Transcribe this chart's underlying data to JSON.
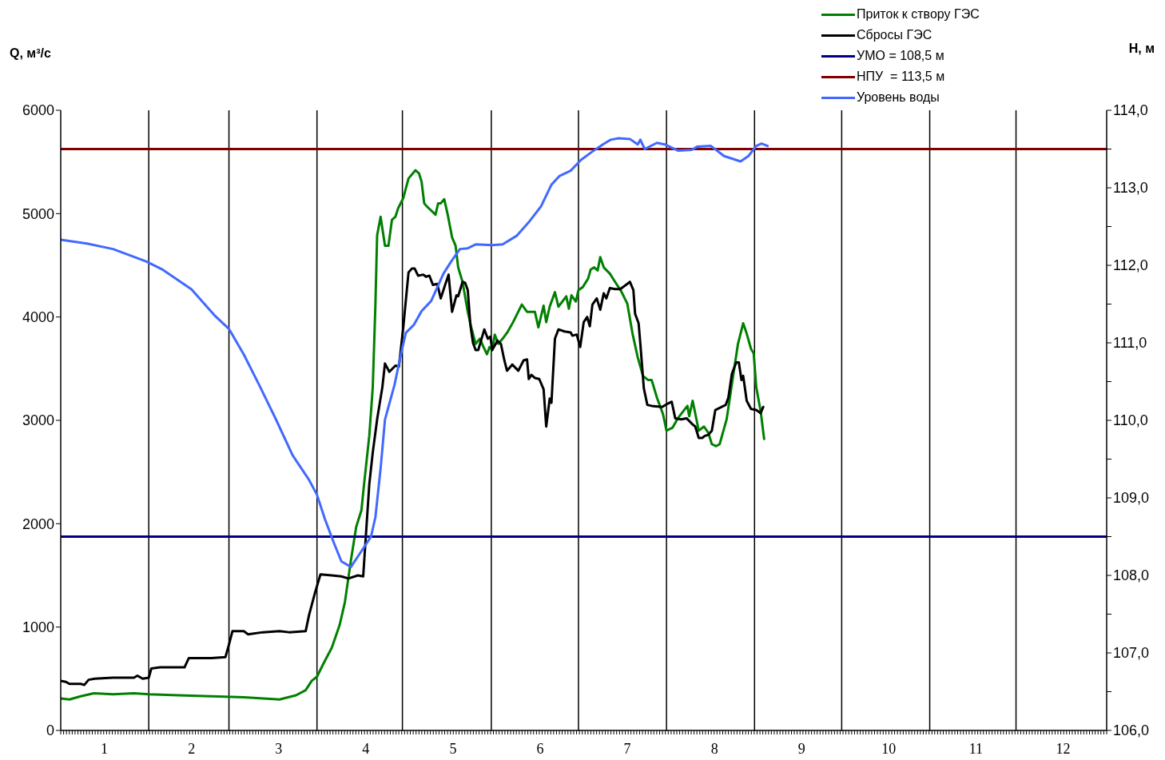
{
  "chart_data": {
    "type": "line",
    "ylabel": "Q, м³/с",
    "y2label": "H, м",
    "legend": "top right",
    "marker": "none",
    "line_style": "solid",
    "xlim": [
      0.5,
      12.5
    ],
    "xticks": [
      1,
      2,
      3,
      4,
      5,
      6,
      7,
      8,
      9,
      10,
      11,
      12,
      {
        "value": 0.5,
        "label": null
      },
      {
        "value": 0.533,
        "label": null
      },
      {
        "value": 0.566,
        "label": null
      },
      {
        "value": 0.599,
        "label": null
      },
      {
        "value": 0.632,
        "label": null
      },
      {
        "value": 0.664,
        "label": null
      },
      {
        "value": 0.697,
        "label": null
      },
      {
        "value": 0.73,
        "label": null
      },
      {
        "value": 0.763,
        "label": null
      },
      {
        "value": 0.796,
        "label": null
      },
      {
        "value": 0.829,
        "label": null
      },
      {
        "value": 0.862,
        "label": null
      },
      {
        "value": 0.895,
        "label": null
      },
      {
        "value": 0.927,
        "label": null
      },
      {
        "value": 0.96,
        "label": null
      },
      {
        "value": 0.993,
        "label": null
      },
      {
        "value": 1.026,
        "label": null
      },
      {
        "value": 1.059,
        "label": null
      },
      {
        "value": 1.092,
        "label": null
      },
      {
        "value": 1.125,
        "label": null
      },
      {
        "value": 1.158,
        "label": null
      },
      {
        "value": 1.19,
        "label": null
      },
      {
        "value": 1.223,
        "label": null
      },
      {
        "value": 1.256,
        "label": null
      },
      {
        "value": 1.289,
        "label": null
      },
      {
        "value": 1.322,
        "label": null
      },
      {
        "value": 1.355,
        "label": null
      },
      {
        "value": 1.388,
        "label": null
      },
      {
        "value": 1.421,
        "label": null
      },
      {
        "value": 1.453,
        "label": null
      },
      {
        "value": 1.486,
        "label": null
      },
      {
        "value": 1.519,
        "label": null
      },
      {
        "value": 1.552,
        "label": null
      },
      {
        "value": 1.585,
        "label": null
      },
      {
        "value": 1.618,
        "label": null
      },
      {
        "value": 1.651,
        "label": null
      },
      {
        "value": 1.684,
        "label": null
      },
      {
        "value": 1.716,
        "label": null
      },
      {
        "value": 1.749,
        "label": null
      },
      {
        "value": 1.782,
        "label": null
      },
      {
        "value": 1.815,
        "label": null
      },
      {
        "value": 1.848,
        "label": null
      },
      {
        "value": 1.881,
        "label": null
      },
      {
        "value": 1.914,
        "label": null
      },
      {
        "value": 1.947,
        "label": null
      },
      {
        "value": 1.979,
        "label": null
      },
      {
        "value": 2.012,
        "label": null
      },
      {
        "value": 2.045,
        "label": null
      },
      {
        "value": 2.078,
        "label": null
      },
      {
        "value": 2.111,
        "label": null
      },
      {
        "value": 2.144,
        "label": null
      },
      {
        "value": 2.177,
        "label": null
      },
      {
        "value": 2.21,
        "label": null
      },
      {
        "value": 2.242,
        "label": null
      },
      {
        "value": 2.275,
        "label": null
      },
      {
        "value": 2.308,
        "label": null
      },
      {
        "value": 2.341,
        "label": null
      },
      {
        "value": 2.374,
        "label": null
      },
      {
        "value": 2.407,
        "label": null
      },
      {
        "value": 2.44,
        "label": null
      },
      {
        "value": 2.473,
        "label": null
      },
      {
        "value": 2.505,
        "label": null
      },
      {
        "value": 2.538,
        "label": null
      },
      {
        "value": 2.571,
        "label": null
      },
      {
        "value": 2.604,
        "label": null
      },
      {
        "value": 2.637,
        "label": null
      },
      {
        "value": 2.67,
        "label": null
      },
      {
        "value": 2.703,
        "label": null
      },
      {
        "value": 2.736,
        "label": null
      },
      {
        "value": 2.768,
        "label": null
      },
      {
        "value": 2.801,
        "label": null
      },
      {
        "value": 2.834,
        "label": null
      },
      {
        "value": 2.867,
        "label": null
      },
      {
        "value": 2.9,
        "label": null
      },
      {
        "value": 2.933,
        "label": null
      },
      {
        "value": 2.966,
        "label": null
      },
      {
        "value": 2.999,
        "label": null
      },
      {
        "value": 3.032,
        "label": null
      },
      {
        "value": 3.064,
        "label": null
      },
      {
        "value": 3.097,
        "label": null
      },
      {
        "value": 3.13,
        "label": null
      },
      {
        "value": 3.163,
        "label": null
      },
      {
        "value": 3.196,
        "label": null
      },
      {
        "value": 3.229,
        "label": null
      },
      {
        "value": 3.262,
        "label": null
      },
      {
        "value": 3.295,
        "label": null
      },
      {
        "value": 3.327,
        "label": null
      },
      {
        "value": 3.36,
        "label": null
      },
      {
        "value": 3.393,
        "label": null
      },
      {
        "value": 3.426,
        "label": null
      },
      {
        "value": 3.459,
        "label": null
      },
      {
        "value": 3.492,
        "label": null
      },
      {
        "value": 3.525,
        "label": null
      },
      {
        "value": 3.558,
        "label": null
      },
      {
        "value": 3.59,
        "label": null
      },
      {
        "value": 3.623,
        "label": null
      },
      {
        "value": 3.656,
        "label": null
      },
      {
        "value": 3.689,
        "label": null
      },
      {
        "value": 3.722,
        "label": null
      },
      {
        "value": 3.755,
        "label": null
      },
      {
        "value": 3.788,
        "label": null
      },
      {
        "value": 3.821,
        "label": null
      },
      {
        "value": 3.853,
        "label": null
      },
      {
        "value": 3.886,
        "label": null
      },
      {
        "value": 3.919,
        "label": null
      },
      {
        "value": 3.952,
        "label": null
      },
      {
        "value": 3.985,
        "label": null
      },
      {
        "value": 4.018,
        "label": null
      },
      {
        "value": 4.051,
        "label": null
      },
      {
        "value": 4.084,
        "label": null
      },
      {
        "value": 4.116,
        "label": null
      },
      {
        "value": 4.149,
        "label": null
      },
      {
        "value": 4.182,
        "label": null
      },
      {
        "value": 4.215,
        "label": null
      },
      {
        "value": 4.248,
        "label": null
      },
      {
        "value": 4.281,
        "label": null
      },
      {
        "value": 4.314,
        "label": null
      },
      {
        "value": 4.347,
        "label": null
      },
      {
        "value": 4.379,
        "label": null
      },
      {
        "value": 4.412,
        "label": null
      },
      {
        "value": 4.445,
        "label": null
      },
      {
        "value": 4.478,
        "label": null
      },
      {
        "value": 4.511,
        "label": null
      },
      {
        "value": 4.544,
        "label": null
      },
      {
        "value": 4.577,
        "label": null
      },
      {
        "value": 4.61,
        "label": null
      },
      {
        "value": 4.642,
        "label": null
      },
      {
        "value": 4.675,
        "label": null
      },
      {
        "value": 4.708,
        "label": null
      },
      {
        "value": 4.741,
        "label": null
      },
      {
        "value": 4.774,
        "label": null
      },
      {
        "value": 4.807,
        "label": null
      },
      {
        "value": 4.84,
        "label": null
      },
      {
        "value": 4.873,
        "label": null
      },
      {
        "value": 4.905,
        "label": null
      },
      {
        "value": 4.938,
        "label": null
      },
      {
        "value": 4.971,
        "label": null
      },
      {
        "value": 5.004,
        "label": null
      },
      {
        "value": 5.037,
        "label": null
      },
      {
        "value": 5.07,
        "label": null
      },
      {
        "value": 5.103,
        "label": null
      },
      {
        "value": 5.136,
        "label": null
      },
      {
        "value": 5.168,
        "label": null
      },
      {
        "value": 5.201,
        "label": null
      },
      {
        "value": 5.234,
        "label": null
      },
      {
        "value": 5.267,
        "label": null
      },
      {
        "value": 5.3,
        "label": null
      },
      {
        "value": 5.333,
        "label": null
      },
      {
        "value": 5.366,
        "label": null
      },
      {
        "value": 5.399,
        "label": null
      },
      {
        "value": 5.432,
        "label": null
      },
      {
        "value": 5.464,
        "label": null
      },
      {
        "value": 5.497,
        "label": null
      },
      {
        "value": 5.53,
        "label": null
      },
      {
        "value": 5.563,
        "label": null
      },
      {
        "value": 5.596,
        "label": null
      },
      {
        "value": 5.629,
        "label": null
      },
      {
        "value": 5.662,
        "label": null
      },
      {
        "value": 5.695,
        "label": null
      },
      {
        "value": 5.727,
        "label": null
      },
      {
        "value": 5.76,
        "label": null
      },
      {
        "value": 5.793,
        "label": null
      },
      {
        "value": 5.826,
        "label": null
      },
      {
        "value": 5.859,
        "label": null
      },
      {
        "value": 5.892,
        "label": null
      },
      {
        "value": 5.925,
        "label": null
      },
      {
        "value": 5.958,
        "label": null
      },
      {
        "value": 5.99,
        "label": null
      },
      {
        "value": 6.023,
        "label": null
      },
      {
        "value": 6.056,
        "label": null
      },
      {
        "value": 6.089,
        "label": null
      },
      {
        "value": 6.122,
        "label": null
      },
      {
        "value": 6.155,
        "label": null
      },
      {
        "value": 6.188,
        "label": null
      },
      {
        "value": 6.221,
        "label": null
      },
      {
        "value": 6.253,
        "label": null
      },
      {
        "value": 6.286,
        "label": null
      },
      {
        "value": 6.319,
        "label": null
      },
      {
        "value": 6.352,
        "label": null
      },
      {
        "value": 6.385,
        "label": null
      },
      {
        "value": 6.418,
        "label": null
      },
      {
        "value": 6.451,
        "label": null
      },
      {
        "value": 6.484,
        "label": null
      },
      {
        "value": 6.516,
        "label": null
      },
      {
        "value": 6.549,
        "label": null
      },
      {
        "value": 6.582,
        "label": null
      },
      {
        "value": 6.615,
        "label": null
      },
      {
        "value": 6.648,
        "label": null
      },
      {
        "value": 6.681,
        "label": null
      },
      {
        "value": 6.714,
        "label": null
      },
      {
        "value": 6.747,
        "label": null
      },
      {
        "value": 6.779,
        "label": null
      },
      {
        "value": 6.812,
        "label": null
      },
      {
        "value": 6.845,
        "label": null
      },
      {
        "value": 6.878,
        "label": null
      },
      {
        "value": 6.911,
        "label": null
      },
      {
        "value": 6.944,
        "label": null
      },
      {
        "value": 6.977,
        "label": null
      },
      {
        "value": 7.01,
        "label": null
      },
      {
        "value": 7.042,
        "label": null
      },
      {
        "value": 7.075,
        "label": null
      },
      {
        "value": 7.108,
        "label": null
      },
      {
        "value": 7.141,
        "label": null
      },
      {
        "value": 7.174,
        "label": null
      },
      {
        "value": 7.207,
        "label": null
      },
      {
        "value": 7.24,
        "label": null
      },
      {
        "value": 7.273,
        "label": null
      },
      {
        "value": 7.305,
        "label": null
      },
      {
        "value": 7.338,
        "label": null
      },
      {
        "value": 7.371,
        "label": null
      },
      {
        "value": 7.404,
        "label": null
      },
      {
        "value": 7.437,
        "label": null
      },
      {
        "value": 7.47,
        "label": null
      },
      {
        "value": 7.503,
        "label": null
      },
      {
        "value": 7.536,
        "label": null
      },
      {
        "value": 7.568,
        "label": null
      },
      {
        "value": 7.601,
        "label": null
      },
      {
        "value": 7.634,
        "label": null
      },
      {
        "value": 7.667,
        "label": null
      },
      {
        "value": 7.7,
        "label": null
      },
      {
        "value": 7.733,
        "label": null
      },
      {
        "value": 7.766,
        "label": null
      },
      {
        "value": 7.799,
        "label": null
      },
      {
        "value": 7.832,
        "label": null
      },
      {
        "value": 7.864,
        "label": null
      },
      {
        "value": 7.897,
        "label": null
      },
      {
        "value": 7.93,
        "label": null
      },
      {
        "value": 7.963,
        "label": null
      },
      {
        "value": 7.996,
        "label": null
      },
      {
        "value": 8.029,
        "label": null
      },
      {
        "value": 8.062,
        "label": null
      },
      {
        "value": 8.095,
        "label": null
      },
      {
        "value": 8.127,
        "label": null
      },
      {
        "value": 8.16,
        "label": null
      },
      {
        "value": 8.193,
        "label": null
      },
      {
        "value": 8.226,
        "label": null
      },
      {
        "value": 8.259,
        "label": null
      },
      {
        "value": 8.292,
        "label": null
      },
      {
        "value": 8.325,
        "label": null
      },
      {
        "value": 8.358,
        "label": null
      },
      {
        "value": 8.39,
        "label": null
      },
      {
        "value": 8.423,
        "label": null
      },
      {
        "value": 8.456,
        "label": null
      },
      {
        "value": 8.489,
        "label": null
      },
      {
        "value": 8.522,
        "label": null
      },
      {
        "value": 8.555,
        "label": null
      },
      {
        "value": 8.588,
        "label": null
      },
      {
        "value": 8.621,
        "label": null
      },
      {
        "value": 8.653,
        "label": null
      },
      {
        "value": 8.686,
        "label": null
      },
      {
        "value": 8.719,
        "label": null
      },
      {
        "value": 8.752,
        "label": null
      },
      {
        "value": 8.785,
        "label": null
      },
      {
        "value": 8.818,
        "label": null
      },
      {
        "value": 8.851,
        "label": null
      },
      {
        "value": 8.884,
        "label": null
      },
      {
        "value": 8.916,
        "label": null
      },
      {
        "value": 8.949,
        "label": null
      },
      {
        "value": 8.982,
        "label": null
      },
      {
        "value": 9.015,
        "label": null
      },
      {
        "value": 9.048,
        "label": null
      },
      {
        "value": 9.081,
        "label": null
      },
      {
        "value": 9.114,
        "label": null
      },
      {
        "value": 9.147,
        "label": null
      },
      {
        "value": 9.179,
        "label": null
      },
      {
        "value": 9.212,
        "label": null
      },
      {
        "value": 9.245,
        "label": null
      },
      {
        "value": 9.278,
        "label": null
      },
      {
        "value": 9.311,
        "label": null
      },
      {
        "value": 9.344,
        "label": null
      },
      {
        "value": 9.377,
        "label": null
      },
      {
        "value": 9.41,
        "label": null
      },
      {
        "value": 9.442,
        "label": null
      },
      {
        "value": 9.475,
        "label": null
      },
      {
        "value": 9.508,
        "label": null
      },
      {
        "value": 9.541,
        "label": null
      },
      {
        "value": 9.574,
        "label": null
      },
      {
        "value": 9.607,
        "label": null
      },
      {
        "value": 9.64,
        "label": null
      },
      {
        "value": 9.673,
        "label": null
      },
      {
        "value": 9.705,
        "label": null
      },
      {
        "value": 9.738,
        "label": null
      },
      {
        "value": 9.771,
        "label": null
      },
      {
        "value": 9.804,
        "label": null
      },
      {
        "value": 9.837,
        "label": null
      },
      {
        "value": 9.87,
        "label": null
      },
      {
        "value": 9.903,
        "label": null
      },
      {
        "value": 9.936,
        "label": null
      },
      {
        "value": 9.968,
        "label": null
      },
      {
        "value": 10.001,
        "label": null
      },
      {
        "value": 10.034,
        "label": null
      },
      {
        "value": 10.067,
        "label": null
      },
      {
        "value": 10.1,
        "label": null
      },
      {
        "value": 10.133,
        "label": null
      },
      {
        "value": 10.166,
        "label": null
      },
      {
        "value": 10.199,
        "label": null
      },
      {
        "value": 10.232,
        "label": null
      },
      {
        "value": 10.264,
        "label": null
      },
      {
        "value": 10.297,
        "label": null
      },
      {
        "value": 10.33,
        "label": null
      },
      {
        "value": 10.363,
        "label": null
      },
      {
        "value": 10.396,
        "label": null
      },
      {
        "value": 10.429,
        "label": null
      },
      {
        "value": 10.462,
        "label": null
      },
      {
        "value": 10.495,
        "label": null
      },
      {
        "value": 10.527,
        "label": null
      },
      {
        "value": 10.56,
        "label": null
      },
      {
        "value": 10.593,
        "label": null
      },
      {
        "value": 10.626,
        "label": null
      },
      {
        "value": 10.659,
        "label": null
      },
      {
        "value": 10.692,
        "label": null
      },
      {
        "value": 10.725,
        "label": null
      },
      {
        "value": 10.758,
        "label": null
      },
      {
        "value": 10.79,
        "label": null
      },
      {
        "value": 10.823,
        "label": null
      },
      {
        "value": 10.856,
        "label": null
      },
      {
        "value": 10.889,
        "label": null
      },
      {
        "value": 10.922,
        "label": null
      },
      {
        "value": 10.955,
        "label": null
      },
      {
        "value": 10.988,
        "label": null
      },
      {
        "value": 11.021,
        "label": null
      },
      {
        "value": 11.053,
        "label": null
      },
      {
        "value": 11.086,
        "label": null
      },
      {
        "value": 11.119,
        "label": null
      },
      {
        "value": 11.152,
        "label": null
      },
      {
        "value": 11.185,
        "label": null
      },
      {
        "value": 11.218,
        "label": null
      },
      {
        "value": 11.251,
        "label": null
      },
      {
        "value": 11.284,
        "label": null
      },
      {
        "value": 11.316,
        "label": null
      },
      {
        "value": 11.349,
        "label": null
      },
      {
        "value": 11.382,
        "label": null
      },
      {
        "value": 11.415,
        "label": null
      },
      {
        "value": 11.448,
        "label": null
      },
      {
        "value": 11.481,
        "label": null
      },
      {
        "value": 11.514,
        "label": null
      },
      {
        "value": 11.547,
        "label": null
      },
      {
        "value": 11.579,
        "label": null
      },
      {
        "value": 11.612,
        "label": null
      },
      {
        "value": 11.645,
        "label": null
      },
      {
        "value": 11.678,
        "label": null
      },
      {
        "value": 11.711,
        "label": null
      },
      {
        "value": 11.744,
        "label": null
      },
      {
        "value": 11.777,
        "label": null
      },
      {
        "value": 11.809,
        "label": null
      },
      {
        "value": 11.842,
        "label": null
      },
      {
        "value": 11.875,
        "label": null
      },
      {
        "value": 11.908,
        "label": null
      },
      {
        "value": 11.941,
        "label": null
      },
      {
        "value": 11.974,
        "label": null
      },
      {
        "value": 12.007,
        "label": null
      },
      {
        "value": 12.04,
        "label": null
      },
      {
        "value": 12.073,
        "label": null
      },
      {
        "value": 12.105,
        "label": null
      },
      {
        "value": 12.138,
        "label": null
      },
      {
        "value": 12.171,
        "label": null
      },
      {
        "value": 12.204,
        "label": null
      },
      {
        "value": 12.237,
        "label": null
      },
      {
        "value": 12.27,
        "label": null
      },
      {
        "value": 12.303,
        "label": null
      },
      {
        "value": 12.336,
        "label": null
      },
      {
        "value": 12.368,
        "label": null
      },
      {
        "value": 12.401,
        "label": null
      },
      {
        "value": 12.434,
        "label": null
      },
      {
        "value": 12.467,
        "label": null
      },
      {
        "value": 12.5,
        "label": null
      }
    ],
    "ylim": [
      0,
      6000
    ],
    "yticks": [
      0,
      1000,
      2000,
      3000,
      4000,
      5000,
      6000
    ],
    "y2lim": [
      106,
      114
    ],
    "y2ticks": [
      {
        "value": 106,
        "label": "106,0"
      },
      {
        "value": 106.5,
        "label": null
      },
      {
        "value": 107,
        "label": "107,0"
      },
      {
        "value": 107.5,
        "label": null
      },
      {
        "value": 108,
        "label": "108,0"
      },
      {
        "value": 108.5,
        "label": null
      },
      {
        "value": 109,
        "label": "109,0"
      },
      {
        "value": 109.5,
        "label": null
      },
      {
        "value": 110,
        "label": "110,0"
      },
      {
        "value": 110.5,
        "label": null
      },
      {
        "value": 111,
        "label": "111,0"
      },
      {
        "value": 111.5,
        "label": null
      },
      {
        "value": 112,
        "label": "112,0"
      },
      {
        "value": 112.5,
        "label": null
      },
      {
        "value": 113,
        "label": "113,0"
      },
      {
        "value": 113.5,
        "label": null
      },
      {
        "value": 114,
        "label": "114,0"
      }
    ],
    "ref_lines": [
      {
        "axis": "x",
        "value": 1.51,
        "color": "#000000"
      },
      {
        "axis": "x",
        "value": 2.43,
        "color": "#000000"
      },
      {
        "axis": "x",
        "value": 3.44,
        "color": "#000000"
      },
      {
        "axis": "x",
        "value": 4.42,
        "color": "#000000"
      },
      {
        "axis": "x",
        "value": 5.44,
        "color": "#000000"
      },
      {
        "axis": "x",
        "value": 6.44,
        "color": "#000000"
      },
      {
        "axis": "x",
        "value": 7.45,
        "color": "#000000"
      },
      {
        "axis": "x",
        "value": 8.46,
        "color": "#000000"
      },
      {
        "axis": "x",
        "value": 9.46,
        "color": "#000000"
      },
      {
        "axis": "x",
        "value": 10.47,
        "color": "#000000"
      },
      {
        "axis": "x",
        "value": 11.46,
        "color": "#000000"
      }
    ],
    "series": [
      {
        "name": "Приток к створу ГЭС",
        "color": "#008000",
        "x": [
          0.5,
          0.6,
          0.73,
          0.88,
          1.1,
          1.34,
          1.51,
          1.85,
          2.23,
          2.6,
          3.01,
          3.2,
          3.31,
          3.38,
          3.44,
          3.51,
          3.61,
          3.7,
          3.76,
          3.83,
          3.89,
          3.95,
          3.98,
          4.04,
          4.08,
          4.11,
          4.13,
          4.17,
          4.22,
          4.26,
          4.3,
          4.34,
          4.37,
          4.43,
          4.49,
          4.57,
          4.61,
          4.64,
          4.67,
          4.7,
          4.8,
          4.83,
          4.86,
          4.9,
          4.94,
          4.99,
          5.03,
          5.06,
          5.11,
          5.17,
          5.21,
          5.26,
          5.31,
          5.35,
          5.39,
          5.42,
          5.45,
          5.48,
          5.52,
          5.57,
          5.63,
          5.69,
          5.79,
          5.85,
          5.94,
          5.98,
          6.04,
          6.07,
          6.11,
          6.17,
          6.21,
          6.3,
          6.33,
          6.36,
          6.41,
          6.44,
          6.49,
          6.55,
          6.58,
          6.62,
          6.66,
          6.69,
          6.73,
          6.8,
          6.86,
          6.93,
          7.0,
          7.06,
          7.12,
          7.18,
          7.24,
          7.28,
          7.34,
          7.41,
          7.45,
          7.52,
          7.58,
          7.69,
          7.71,
          7.75,
          7.82,
          7.88,
          7.93,
          7.97,
          8.02,
          8.06,
          8.14,
          8.2,
          8.27,
          8.33,
          8.37,
          8.42,
          8.45,
          8.48,
          8.53,
          8.57
        ],
        "values": [
          310,
          300,
          330,
          360,
          350,
          360,
          350,
          340,
          330,
          320,
          300,
          340,
          390,
          480,
          520,
          640,
          800,
          1020,
          1240,
          1650,
          1970,
          2130,
          2380,
          2850,
          3320,
          4110,
          4790,
          4970,
          4690,
          4690,
          4940,
          4970,
          5050,
          5150,
          5340,
          5420,
          5390,
          5310,
          5100,
          5070,
          4990,
          5100,
          5100,
          5140,
          4990,
          4770,
          4690,
          4480,
          4340,
          4050,
          3900,
          3740,
          3790,
          3710,
          3640,
          3710,
          3680,
          3830,
          3740,
          3790,
          3860,
          3950,
          4120,
          4050,
          4050,
          3900,
          4110,
          3950,
          4100,
          4240,
          4100,
          4200,
          4080,
          4210,
          4150,
          4260,
          4290,
          4370,
          4460,
          4480,
          4450,
          4580,
          4480,
          4420,
          4340,
          4250,
          4130,
          3840,
          3610,
          3430,
          3390,
          3390,
          3220,
          3060,
          2900,
          2930,
          3020,
          3140,
          3040,
          3190,
          2900,
          2940,
          2880,
          2770,
          2750,
          2770,
          3010,
          3350,
          3740,
          3940,
          3840,
          3690,
          3650,
          3320,
          3090,
          2820
        ]
      },
      {
        "name": "Сбросы ГЭС",
        "color": "#000000",
        "x": [
          0.5,
          0.56,
          0.6,
          0.73,
          0.77,
          0.82,
          0.89,
          1.1,
          1.34,
          1.38,
          1.44,
          1.51,
          1.54,
          1.64,
          1.92,
          1.97,
          2.07,
          2.23,
          2.39,
          2.43,
          2.47,
          2.6,
          2.65,
          2.82,
          3.01,
          3.12,
          3.31,
          3.35,
          3.42,
          3.48,
          3.61,
          3.72,
          3.8,
          3.91,
          3.97,
          4.04,
          4.08,
          4.13,
          4.19,
          4.22,
          4.27,
          4.34,
          4.38,
          4.43,
          4.49,
          4.53,
          4.56,
          4.6,
          4.66,
          4.69,
          4.73,
          4.77,
          4.82,
          4.86,
          4.91,
          4.95,
          4.99,
          5.04,
          5.06,
          5.11,
          5.14,
          5.17,
          5.2,
          5.23,
          5.26,
          5.29,
          5.36,
          5.4,
          5.43,
          5.45,
          5.51,
          5.55,
          5.59,
          5.62,
          5.68,
          5.75,
          5.81,
          5.85,
          5.87,
          5.9,
          5.94,
          5.99,
          6.04,
          6.07,
          6.11,
          6.13,
          6.17,
          6.21,
          6.28,
          6.35,
          6.37,
          6.42,
          6.46,
          6.5,
          6.54,
          6.57,
          6.6,
          6.65,
          6.69,
          6.73,
          6.76,
          6.8,
          6.86,
          6.92,
          7.0,
          7.03,
          7.07,
          7.09,
          7.13,
          7.15,
          7.19,
          7.23,
          7.28,
          7.4,
          7.46,
          7.51,
          7.55,
          7.62,
          7.68,
          7.75,
          7.78,
          7.82,
          7.86,
          7.89,
          7.93,
          7.97,
          8.01,
          8.13,
          8.16,
          8.2,
          8.25,
          8.28,
          8.31,
          8.33,
          8.37,
          8.42,
          8.48,
          8.53,
          8.56
        ],
        "values": [
          480,
          470,
          450,
          450,
          440,
          490,
          500,
          510,
          510,
          530,
          500,
          510,
          600,
          610,
          610,
          700,
          700,
          700,
          710,
          830,
          960,
          960,
          930,
          950,
          960,
          950,
          960,
          1120,
          1340,
          1510,
          1500,
          1490,
          1470,
          1500,
          1490,
          2380,
          2690,
          3010,
          3320,
          3550,
          3470,
          3530,
          3520,
          3900,
          4430,
          4470,
          4470,
          4400,
          4410,
          4390,
          4400,
          4310,
          4320,
          4180,
          4310,
          4410,
          4050,
          4210,
          4200,
          4340,
          4330,
          4260,
          3920,
          3750,
          3680,
          3680,
          3880,
          3790,
          3810,
          3680,
          3770,
          3740,
          3580,
          3480,
          3540,
          3480,
          3580,
          3590,
          3400,
          3440,
          3410,
          3400,
          3300,
          2940,
          3210,
          3170,
          3790,
          3880,
          3860,
          3850,
          3820,
          3830,
          3710,
          3950,
          4000,
          3910,
          4120,
          4180,
          4070,
          4230,
          4180,
          4280,
          4270,
          4270,
          4320,
          4340,
          4260,
          4030,
          3940,
          3740,
          3310,
          3150,
          3140,
          3130,
          3160,
          3180,
          3020,
          3010,
          3020,
          2960,
          2940,
          2830,
          2830,
          2850,
          2860,
          2900,
          3100,
          3150,
          3220,
          3450,
          3560,
          3560,
          3390,
          3430,
          3190,
          3110,
          3100,
          3070,
          3130
        ]
      },
      {
        "name": "УМО = 108,5 м",
        "color": "#000080",
        "axis": "y2",
        "x": [
          0.5,
          12.5
        ],
        "values": [
          108.5,
          108.5
        ]
      },
      {
        "name": "НПУ  = 113,5 м",
        "color": "#800000",
        "axis": "y2",
        "x": [
          0.5,
          12.5
        ],
        "values": [
          113.5,
          113.5
        ]
      },
      {
        "name": "Уровень воды",
        "color": "#4169ff",
        "axis": "y2",
        "x": [
          0.5,
          0.8,
          1.1,
          1.48,
          1.66,
          2.0,
          2.26,
          2.43,
          2.6,
          2.78,
          2.97,
          3.16,
          3.35,
          3.44,
          3.53,
          3.63,
          3.72,
          3.83,
          3.96,
          4.06,
          4.11,
          4.17,
          4.22,
          4.33,
          4.41,
          4.46,
          4.55,
          4.64,
          4.75,
          4.89,
          4.98,
          5.08,
          5.17,
          5.26,
          5.45,
          5.57,
          5.73,
          5.88,
          6.01,
          6.13,
          6.22,
          6.35,
          6.47,
          6.59,
          6.72,
          6.81,
          6.9,
          7.03,
          7.12,
          7.15,
          7.2,
          7.34,
          7.43,
          7.58,
          7.74,
          7.8,
          7.96,
          8.11,
          8.3,
          8.39,
          8.48,
          8.54,
          8.61
        ],
        "values": [
          112.33,
          112.28,
          112.21,
          112.05,
          111.95,
          111.69,
          111.36,
          111.18,
          110.85,
          110.45,
          110.01,
          109.55,
          109.23,
          109.04,
          108.73,
          108.43,
          108.18,
          108.11,
          108.33,
          108.5,
          108.75,
          109.38,
          110.01,
          110.46,
          110.89,
          111.13,
          111.23,
          111.41,
          111.54,
          111.89,
          112.05,
          112.21,
          112.22,
          112.27,
          112.26,
          112.27,
          112.38,
          112.57,
          112.76,
          113.04,
          113.15,
          113.22,
          113.36,
          113.46,
          113.56,
          113.62,
          113.64,
          113.63,
          113.56,
          113.62,
          113.5,
          113.58,
          113.56,
          113.48,
          113.49,
          113.53,
          113.54,
          113.41,
          113.34,
          113.41,
          113.54,
          113.57,
          113.54
        ]
      }
    ]
  }
}
